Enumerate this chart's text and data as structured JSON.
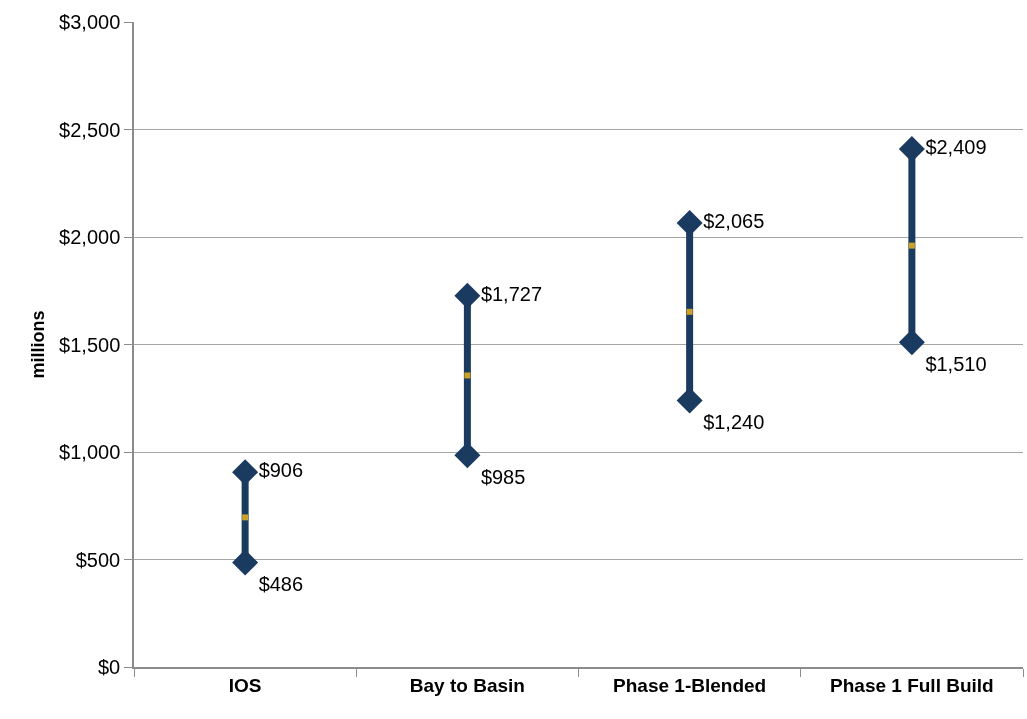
{
  "chart_data": {
    "type": "line",
    "ylabel": "millions",
    "categories": [
      "IOS",
      "Bay to Basin",
      "Phase 1-Blended",
      "Phase 1 Full Build"
    ],
    "marker": "diamond",
    "line_style": "solid",
    "series": [
      {
        "color": "#1b3a60",
        "x": [
          "IOS",
          "IOS"
        ],
        "values": [
          486,
          906
        ],
        "value_labels": [
          "$486",
          "$906"
        ]
      },
      {
        "color": "#1b3a60",
        "x": [
          "Bay to Basin",
          "Bay to Basin"
        ],
        "values": [
          985,
          1727
        ],
        "value_labels": [
          "$985",
          "$1,727"
        ]
      },
      {
        "color": "#1b3a60",
        "x": [
          "Phase 1-Blended",
          "Phase 1-Blended"
        ],
        "values": [
          1240,
          2065
        ],
        "value_labels": [
          "$1,240",
          "$2,065"
        ]
      },
      {
        "color": "#1b3a60",
        "x": [
          "Phase 1 Full Build",
          "Phase 1 Full Build"
        ],
        "values": [
          1510,
          2409
        ],
        "value_labels": [
          "$1,510",
          "$2,409"
        ]
      },
      {
        "type": "scatter",
        "color": "#c9a227",
        "marker": "square",
        "values": [
          696,
          1356,
          1652,
          1960
        ]
      }
    ],
    "ylim": [
      0,
      3000
    ],
    "yticks": [
      {
        "value": 0,
        "label": "$0"
      },
      {
        "value": 500,
        "label": "$500"
      },
      {
        "value": 1000,
        "label": "$1,000"
      },
      {
        "value": 1500,
        "label": "$1,500"
      },
      {
        "value": 2000,
        "label": "$2,000"
      },
      {
        "value": 2500,
        "label": "$2,500"
      },
      {
        "value": 3000,
        "label": "$3,000"
      }
    ],
    "grid": "y"
  }
}
